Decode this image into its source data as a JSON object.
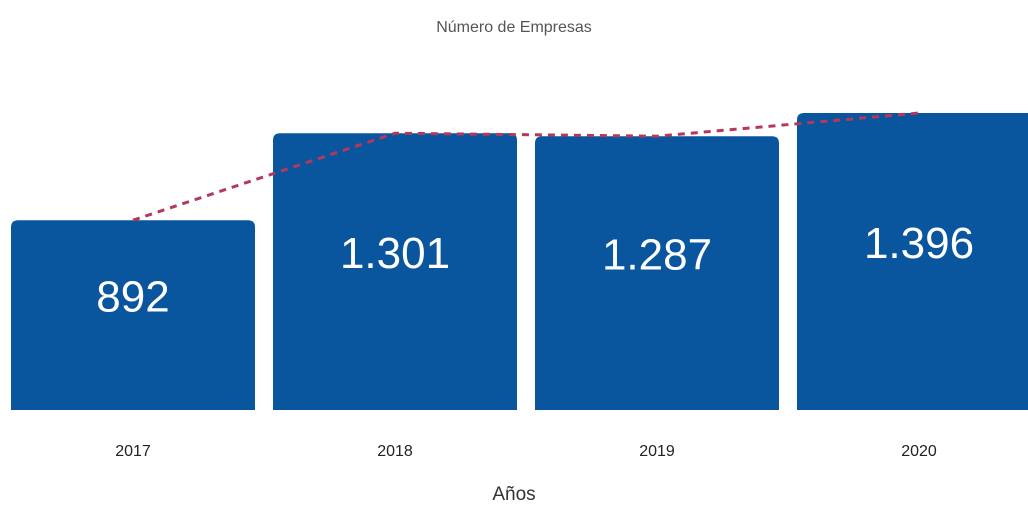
{
  "chart_data": {
    "type": "bar",
    "title": "Número de Empresas",
    "x_label": "Años",
    "categories": [
      "2017",
      "2018",
      "2019",
      "2020"
    ],
    "values": [
      892,
      1301,
      1287,
      1396
    ],
    "value_labels": [
      "892",
      "1.301",
      "1.287",
      "1.396"
    ],
    "color": "#0a569e",
    "trend_color": "#b5385a"
  }
}
